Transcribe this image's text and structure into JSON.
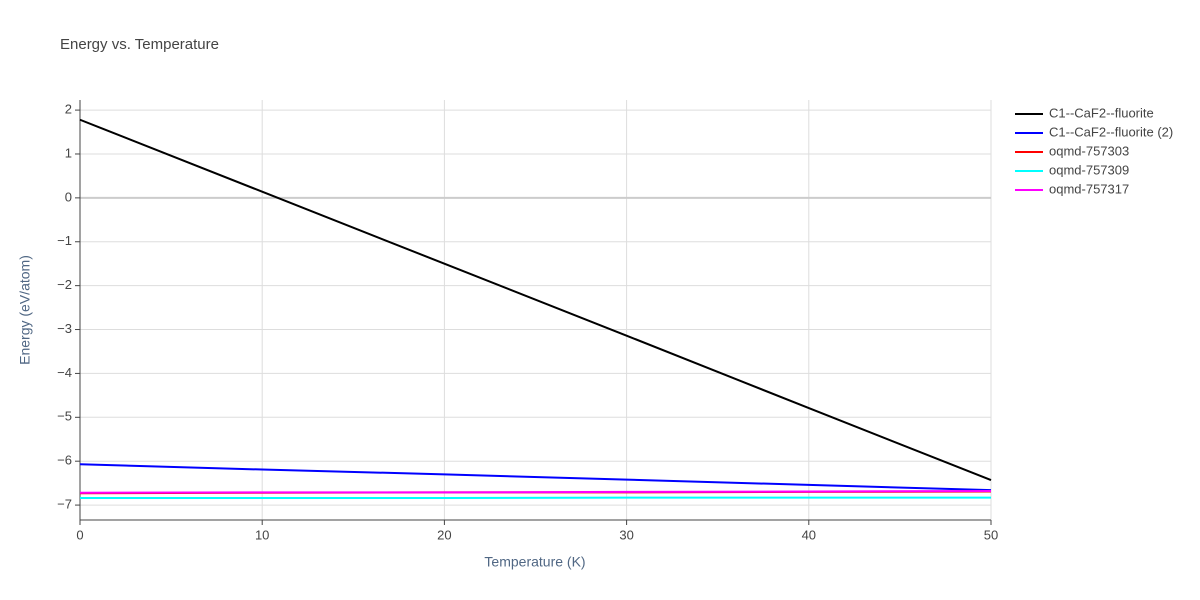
{
  "chart_data": {
    "type": "line",
    "title": "Energy vs. Temperature",
    "x_label": "Temperature (K)",
    "y_label": "Energy (eV/atom)",
    "x": [
      0,
      10,
      20,
      30,
      40,
      50
    ],
    "series": [
      {
        "name": "C1--CaF2--fluorite",
        "color": "#000000",
        "values": [
          1.78,
          0.14,
          -1.5,
          -3.14,
          -4.79,
          -6.43
        ]
      },
      {
        "name": "C1--CaF2--fluorite (2)",
        "color": "#0000ff",
        "values": [
          -6.07,
          -6.19,
          -6.3,
          -6.42,
          -6.54,
          -6.66
        ]
      },
      {
        "name": "oqmd-757303",
        "color": "#ff0000",
        "values": [
          -6.73,
          -6.72,
          -6.71,
          -6.71,
          -6.7,
          -6.69
        ]
      },
      {
        "name": "oqmd-757309",
        "color": "#00ffff",
        "values": [
          -6.84,
          -6.84,
          -6.84,
          -6.83,
          -6.83,
          -6.83
        ]
      },
      {
        "name": "oqmd-757317",
        "color": "#ff00ff",
        "values": [
          -6.72,
          -6.71,
          -6.71,
          -6.7,
          -6.69,
          -6.68
        ]
      }
    ],
    "xlim": [
      0,
      50
    ],
    "xticks": [
      0,
      10,
      20,
      30,
      40,
      50
    ],
    "ylim": [
      -7.34,
      2.23
    ],
    "yticks": [
      {
        "value": -7,
        "label": "−7"
      },
      {
        "value": -6,
        "label": "−6"
      },
      {
        "value": -5,
        "label": "−5"
      },
      {
        "value": -4,
        "label": "−4"
      },
      {
        "value": -3,
        "label": "−3"
      },
      {
        "value": -2,
        "label": "−2"
      },
      {
        "value": -1,
        "label": "−1"
      },
      0,
      1,
      2
    ],
    "grid": true,
    "legend": "right"
  }
}
